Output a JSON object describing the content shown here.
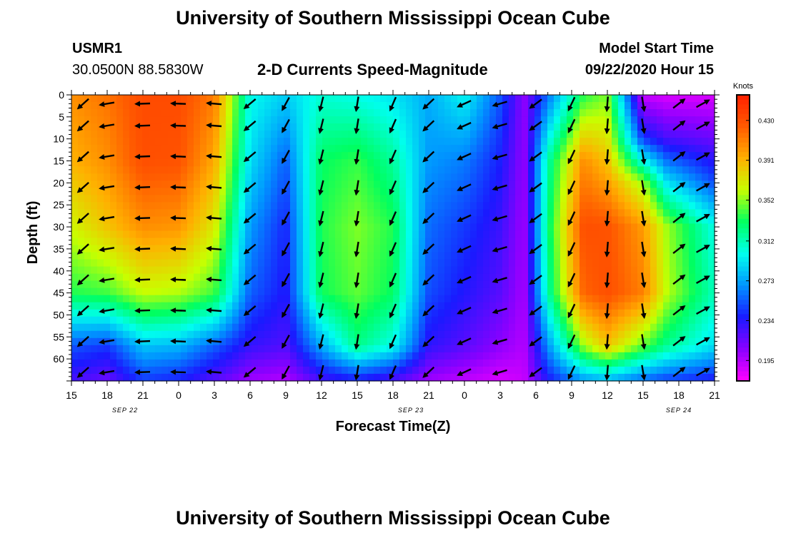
{
  "header": {
    "title": "University of Southern Mississippi Ocean Cube",
    "footer_title": "University of Southern Mississippi Ocean Cube",
    "station_id": "USMR1",
    "location": "30.0500N 88.5830W",
    "plot_title": "2-D Currents Speed-Magnitude",
    "model_start_label": "Model Start Time",
    "model_start_value": "09/22/2020 Hour 15"
  },
  "chart_data": {
    "type": "heatmap",
    "title": "2-D Currents Speed-Magnitude",
    "xlabel": "Forecast Time(Z)",
    "ylabel": "Depth (ft)",
    "x_tick_labels": [
      "15",
      "18",
      "21",
      "0",
      "3",
      "6",
      "9",
      "12",
      "15",
      "18",
      "21",
      "0",
      "3",
      "6",
      "9",
      "12",
      "15",
      "18",
      "21"
    ],
    "date_labels": [
      {
        "label": "SEP 22",
        "hour_index": 4.5
      },
      {
        "label": "SEP 23",
        "hour_index": 28.5
      },
      {
        "label": "SEP 24",
        "hour_index": 51
      }
    ],
    "x_range_hours": [
      0,
      54
    ],
    "y_ticks": [
      0,
      5,
      10,
      15,
      20,
      25,
      30,
      35,
      40,
      45,
      50,
      55,
      60
    ],
    "ylim": [
      0,
      65
    ],
    "colorbar": {
      "label": "Knots",
      "ticks": [
        "0.430",
        "0.391",
        "0.352",
        "0.312",
        "0.273",
        "0.234",
        "0.195"
      ],
      "colors": [
        "#ff00ff",
        "#8a00ff",
        "#1a1aff",
        "#0095ff",
        "#00ffee",
        "#00ff60",
        "#c8ff00",
        "#ffb000",
        "#ff5a00",
        "#ff2000"
      ]
    },
    "speed_scale": {
      "min": 0.175,
      "max": 0.455
    },
    "speed_profiles": [
      {
        "hour": 0,
        "d": [
          0,
          15,
          30,
          45,
          57,
          65
        ],
        "v": [
          0.405,
          0.392,
          0.365,
          0.335,
          0.252,
          0.225
        ]
      },
      {
        "hour": 3,
        "d": [
          0,
          15,
          30,
          45,
          57,
          65
        ],
        "v": [
          0.415,
          0.405,
          0.385,
          0.34,
          0.245,
          0.215
        ]
      },
      {
        "hour": 6,
        "d": [
          0,
          15,
          30,
          45,
          57,
          65
        ],
        "v": [
          0.432,
          0.43,
          0.405,
          0.362,
          0.282,
          0.245
        ]
      },
      {
        "hour": 9,
        "d": [
          0,
          15,
          30,
          45,
          57,
          65
        ],
        "v": [
          0.432,
          0.428,
          0.402,
          0.358,
          0.278,
          0.238
        ]
      },
      {
        "hour": 12,
        "d": [
          0,
          15,
          30,
          45,
          57,
          65
        ],
        "v": [
          0.412,
          0.395,
          0.37,
          0.34,
          0.255,
          0.22
        ]
      },
      {
        "hour": 15,
        "d": [
          0,
          15,
          30,
          45,
          57,
          65
        ],
        "v": [
          0.3,
          0.29,
          0.27,
          0.255,
          0.23,
          0.2
        ]
      },
      {
        "hour": 18,
        "d": [
          0,
          15,
          30,
          45,
          57,
          65
        ],
        "v": [
          0.285,
          0.255,
          0.24,
          0.235,
          0.222,
          0.195
        ]
      },
      {
        "hour": 21,
        "d": [
          0,
          15,
          30,
          45,
          57,
          65
        ],
        "v": [
          0.305,
          0.33,
          0.335,
          0.332,
          0.275,
          0.225
        ]
      },
      {
        "hour": 24,
        "d": [
          0,
          15,
          30,
          45,
          57,
          65
        ],
        "v": [
          0.3,
          0.338,
          0.35,
          0.345,
          0.322,
          0.235
        ]
      },
      {
        "hour": 27,
        "d": [
          0,
          15,
          30,
          45,
          57,
          65
        ],
        "v": [
          0.292,
          0.318,
          0.335,
          0.33,
          0.3,
          0.222
        ]
      },
      {
        "hour": 30,
        "d": [
          0,
          15,
          30,
          45,
          57,
          65
        ],
        "v": [
          0.275,
          0.27,
          0.258,
          0.25,
          0.232,
          0.2
        ]
      },
      {
        "hour": 33,
        "d": [
          0,
          15,
          30,
          45,
          57,
          65
        ],
        "v": [
          0.298,
          0.262,
          0.245,
          0.235,
          0.22,
          0.192
        ]
      },
      {
        "hour": 36,
        "d": [
          0,
          15,
          30,
          45,
          57,
          65
        ],
        "v": [
          0.252,
          0.238,
          0.228,
          0.22,
          0.205,
          0.185
        ]
      },
      {
        "hour": 38,
        "d": [
          0,
          15,
          30,
          45,
          57,
          65
        ],
        "v": [
          0.205,
          0.203,
          0.2,
          0.198,
          0.195,
          0.19
        ]
      },
      {
        "hour": 40,
        "d": [
          0,
          15,
          30,
          45,
          57,
          65
        ],
        "v": [
          0.258,
          0.315,
          0.325,
          0.315,
          0.268,
          0.235
        ]
      },
      {
        "hour": 43,
        "d": [
          0,
          15,
          30,
          45,
          57,
          65
        ],
        "v": [
          0.335,
          0.405,
          0.43,
          0.42,
          0.355,
          0.268
        ]
      },
      {
        "hour": 45,
        "d": [
          0,
          15,
          30,
          45,
          57,
          65
        ],
        "v": [
          0.35,
          0.385,
          0.428,
          0.43,
          0.385,
          0.275
        ]
      },
      {
        "hour": 48,
        "d": [
          0,
          10,
          20,
          30,
          45,
          57,
          65
        ],
        "v": [
          0.19,
          0.245,
          0.355,
          0.4,
          0.41,
          0.345,
          0.255
        ]
      },
      {
        "hour": 50,
        "d": [
          0,
          10,
          20,
          30,
          45,
          57,
          65
        ],
        "v": [
          0.185,
          0.225,
          0.292,
          0.355,
          0.36,
          0.32,
          0.245
        ]
      },
      {
        "hour": 54,
        "d": [
          0,
          10,
          20,
          30,
          45,
          57,
          65
        ],
        "v": [
          0.185,
          0.215,
          0.25,
          0.3,
          0.31,
          0.29,
          0.235
        ]
      }
    ],
    "vector_rows_depth": [
      2,
      7,
      14,
      21,
      28,
      35,
      42,
      49,
      56,
      63
    ],
    "vector_columns": [
      {
        "hour": 1,
        "u": -1.0,
        "v": -0.9
      },
      {
        "hour": 3,
        "u": -1.2,
        "v": -0.2
      },
      {
        "hour": 6,
        "u": -1.3,
        "v": -0.05
      },
      {
        "hour": 9,
        "u": -1.25,
        "v": 0.05
      },
      {
        "hour": 12,
        "u": -1.2,
        "v": 0.1
      },
      {
        "hour": 15,
        "u": -0.9,
        "v": -0.75
      },
      {
        "hour": 18,
        "u": -0.6,
        "v": -1.1
      },
      {
        "hour": 21,
        "u": -0.3,
        "v": -1.2
      },
      {
        "hour": 24,
        "u": -0.2,
        "v": -1.25
      },
      {
        "hour": 27,
        "u": -0.5,
        "v": -1.15
      },
      {
        "hour": 30,
        "u": -0.85,
        "v": -0.8
      },
      {
        "hour": 33,
        "u": -1.1,
        "v": -0.5
      },
      {
        "hour": 36,
        "u": -1.2,
        "v": -0.35
      },
      {
        "hour": 39,
        "u": -0.95,
        "v": -0.7
      },
      {
        "hour": 42,
        "u": -0.5,
        "v": -1.05
      },
      {
        "hour": 45,
        "u": -0.1,
        "v": -1.25
      },
      {
        "hour": 48,
        "u": 0.2,
        "v": -1.25
      },
      {
        "hour": 51,
        "u": 0.9,
        "v": 0.7
      },
      {
        "hour": 53,
        "u": 1.0,
        "v": 0.55
      }
    ]
  }
}
